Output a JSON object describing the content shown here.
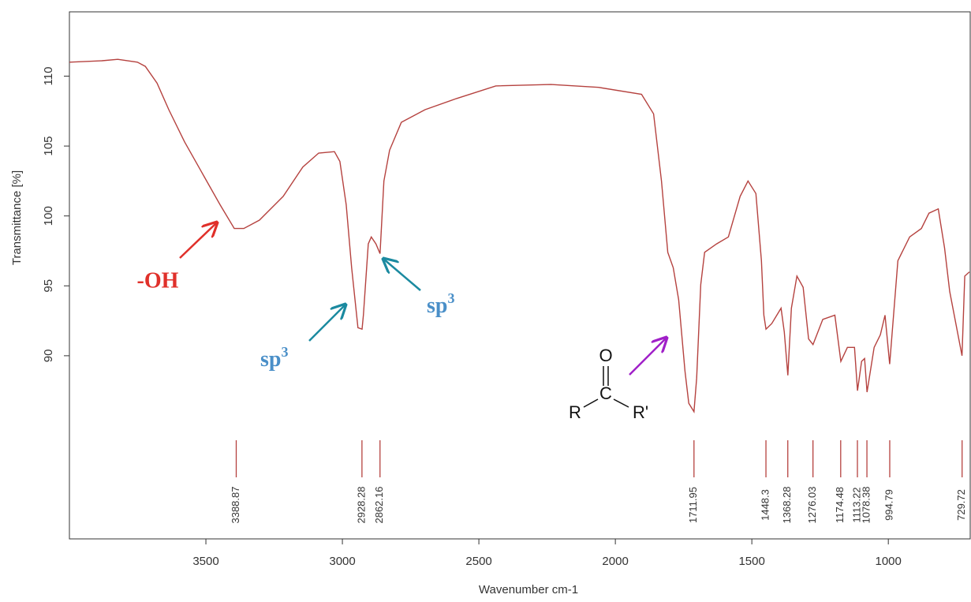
{
  "chart_data": {
    "type": "line",
    "xlabel": "Wavenumber cm-1",
    "ylabel": "Transmittance [%]",
    "xlim": [
      4000,
      700
    ],
    "ylim": [
      76.9,
      114.6
    ],
    "xticks": [
      3500,
      3000,
      2500,
      2000,
      1500,
      1000
    ],
    "yticks": [
      90,
      95,
      100,
      105,
      110
    ],
    "color": "#b5423f",
    "x": [
      4000,
      3881,
      3823,
      3751,
      3722,
      3679,
      3636,
      3578,
      3506,
      3448,
      3396,
      3361,
      3304,
      3217,
      3145,
      3087,
      3029,
      3009,
      2986,
      2966,
      2943,
      2928,
      2923,
      2905,
      2894,
      2877,
      2862,
      2848,
      2827,
      2784,
      2697,
      2582,
      2438,
      2236,
      2062,
      1904,
      1860,
      1831,
      1808,
      1788,
      1768,
      1745,
      1731,
      1712,
      1702,
      1687,
      1673,
      1629,
      1586,
      1543,
      1514,
      1485,
      1465,
      1456,
      1448,
      1427,
      1393,
      1381,
      1368,
      1355,
      1335,
      1312,
      1292,
      1276,
      1240,
      1196,
      1174,
      1150,
      1124,
      1113,
      1098,
      1087,
      1078,
      1052,
      1029,
      1012,
      995,
      965,
      922,
      879,
      851,
      817,
      794,
      775,
      730,
      720,
      703
    ],
    "values": [
      111.0,
      111.1,
      111.2,
      111.0,
      110.7,
      109.5,
      107.6,
      105.3,
      102.8,
      100.8,
      99.1,
      99.1,
      99.7,
      101.4,
      103.5,
      104.5,
      104.6,
      103.9,
      100.8,
      96.3,
      92.0,
      91.9,
      92.9,
      98.0,
      98.5,
      98.0,
      97.3,
      102.5,
      104.7,
      106.7,
      107.6,
      108.4,
      109.3,
      109.4,
      109.2,
      108.7,
      107.3,
      102.5,
      97.4,
      96.3,
      94.0,
      88.9,
      86.6,
      86.0,
      88.4,
      95.1,
      97.4,
      98.0,
      98.5,
      101.4,
      102.5,
      101.6,
      96.8,
      92.9,
      91.9,
      92.3,
      93.4,
      91.7,
      88.6,
      93.4,
      95.7,
      94.9,
      91.2,
      90.8,
      92.6,
      92.9,
      89.6,
      90.6,
      90.6,
      87.5,
      89.6,
      89.8,
      87.4,
      90.6,
      91.5,
      92.9,
      89.4,
      96.8,
      98.5,
      99.1,
      100.2,
      100.5,
      97.7,
      94.6,
      90.0,
      95.7,
      96.0
    ],
    "peaks": [
      3388.87,
      2928.28,
      2862.16,
      1711.95,
      1448.3,
      1368.28,
      1276.03,
      1174.48,
      1113.22,
      1078.38,
      994.79,
      729.72
    ]
  },
  "annotations": [
    {
      "text": "-OH"
    },
    {
      "text": "sp",
      "sup": "3"
    },
    {
      "text": "sp",
      "sup": "3"
    }
  ],
  "structure": {
    "atoms": [
      "O",
      "C",
      "R",
      "R'"
    ]
  }
}
